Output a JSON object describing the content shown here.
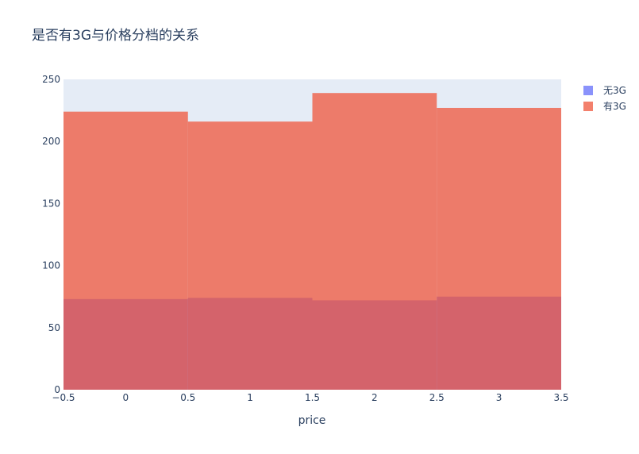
{
  "chart_data": {
    "type": "bar",
    "title": "是否有3G与价格分档的关系",
    "xlabel": "price",
    "ylabel": "",
    "x": [
      0,
      1,
      2,
      3
    ],
    "bin_width": 1,
    "xlim": [
      -0.5,
      3.5
    ],
    "ylim": [
      0,
      250
    ],
    "x_ticks": [
      "−0.5",
      "0",
      "0.5",
      "1",
      "1.5",
      "2",
      "2.5",
      "3",
      "3.5"
    ],
    "y_ticks": [
      "0",
      "50",
      "100",
      "150",
      "200",
      "250"
    ],
    "barmode": "overlay",
    "grid": false,
    "legend_position": "top-right",
    "series": [
      {
        "name": "无3G",
        "values": [
          73,
          74,
          72,
          75
        ],
        "color": "#636efa"
      },
      {
        "name": "有3G",
        "values": [
          224,
          216,
          239,
          227
        ],
        "color": "#ef553b"
      }
    ],
    "plot_bg": "#e5ecf6"
  }
}
